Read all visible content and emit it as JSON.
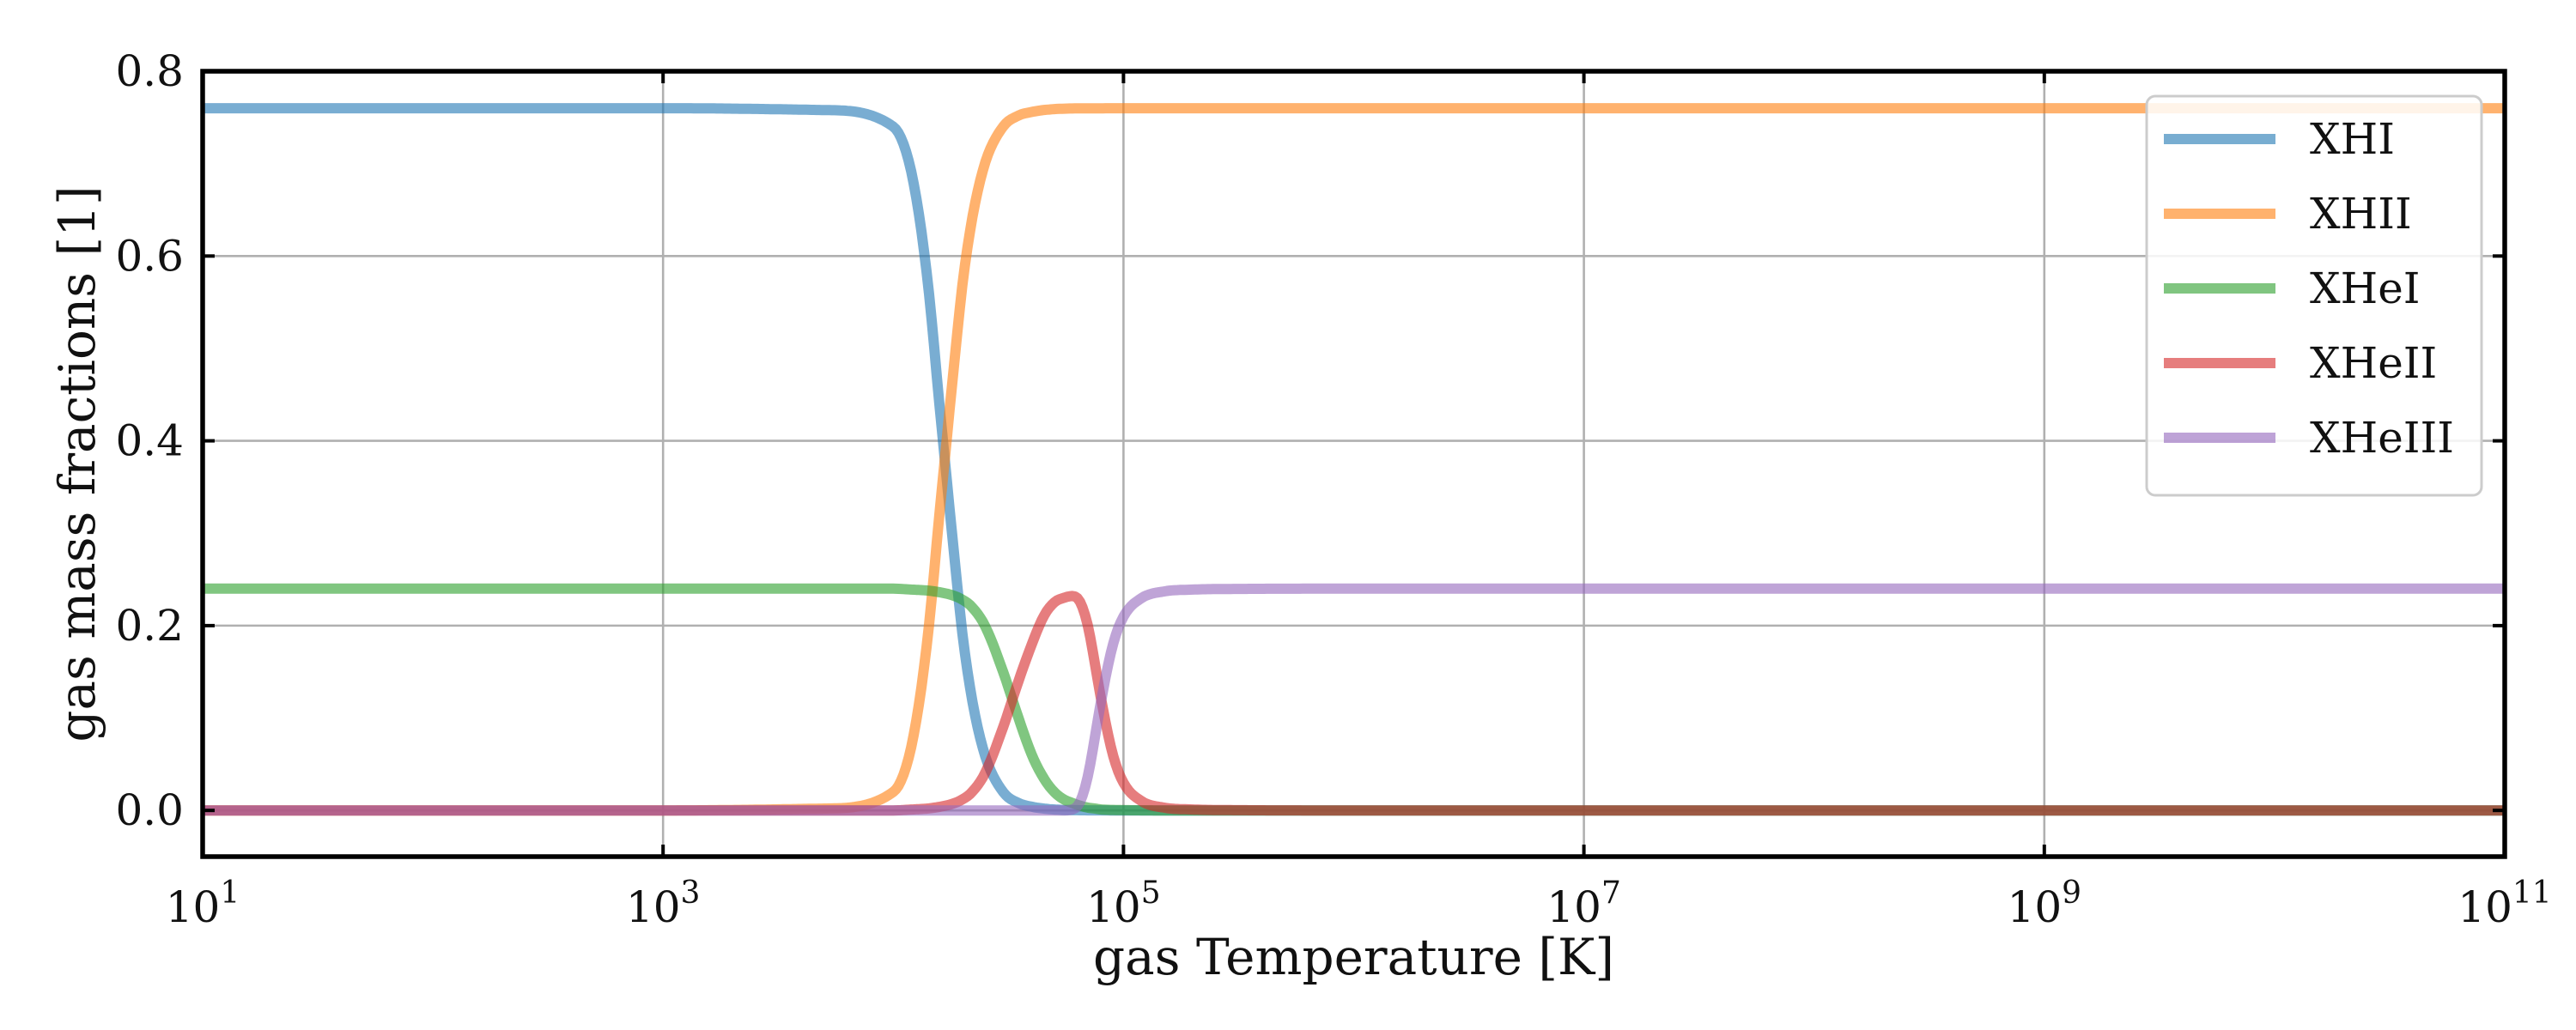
{
  "chart_data": {
    "type": "line",
    "xlabel": "gas Temperature [K]",
    "ylabel": "gas mass fractions [1]",
    "x_scale": "log",
    "xlim": [
      10,
      100000000000
    ],
    "ylim": [
      -0.05,
      0.8
    ],
    "x_ticks": [
      {
        "value": 10,
        "base": "10",
        "exp": "1"
      },
      {
        "value": 1000,
        "base": "10",
        "exp": "3"
      },
      {
        "value": 100000,
        "base": "10",
        "exp": "5"
      },
      {
        "value": 10000000,
        "base": "10",
        "exp": "7"
      },
      {
        "value": 1000000000,
        "base": "10",
        "exp": "9"
      },
      {
        "value": 100000000000,
        "base": "10",
        "exp": "11"
      }
    ],
    "y_ticks": [
      {
        "value": 0.0,
        "label": "0.0"
      },
      {
        "value": 0.2,
        "label": "0.2"
      },
      {
        "value": 0.4,
        "label": "0.4"
      },
      {
        "value": 0.6,
        "label": "0.6"
      },
      {
        "value": 0.8,
        "label": "0.8"
      }
    ],
    "grid": true,
    "legend_position": "top-right",
    "x": [
      10,
      100,
      1000,
      5000,
      10000,
      12000,
      14000,
      16000,
      18000,
      20000,
      22000,
      25000,
      30000,
      35000,
      40000,
      45000,
      50000,
      55000,
      60000,
      65000,
      70000,
      75000,
      80000,
      90000,
      100000,
      120000,
      150000,
      200000,
      300000,
      1000000,
      10000000,
      1000000000,
      100000000000
    ],
    "series": [
      {
        "name": "XHI",
        "color": "#1f77b4",
        "values": [
          0.76,
          0.76,
          0.76,
          0.758,
          0.74,
          0.69,
          0.58,
          0.43,
          0.3,
          0.19,
          0.12,
          0.06,
          0.02,
          0.008,
          0.004,
          0.002,
          0.001,
          0.0005,
          0.0003,
          0.0002,
          0.0001,
          0.0001,
          0.0001,
          0.0,
          0.0,
          0.0,
          0.0,
          0.0,
          0.0,
          0.0,
          0.0,
          0.0,
          0.0
        ]
      },
      {
        "name": "XHII",
        "color": "#ff7f0e",
        "values": [
          0.0,
          0.0,
          0.0,
          0.002,
          0.02,
          0.07,
          0.18,
          0.33,
          0.46,
          0.57,
          0.64,
          0.7,
          0.74,
          0.752,
          0.756,
          0.758,
          0.759,
          0.7595,
          0.7597,
          0.7598,
          0.7599,
          0.7599,
          0.7599,
          0.76,
          0.76,
          0.76,
          0.76,
          0.76,
          0.76,
          0.76,
          0.76,
          0.76,
          0.76
        ]
      },
      {
        "name": "XHeI",
        "color": "#2ca02c",
        "values": [
          0.24,
          0.24,
          0.24,
          0.24,
          0.24,
          0.239,
          0.238,
          0.236,
          0.233,
          0.228,
          0.22,
          0.2,
          0.15,
          0.1,
          0.06,
          0.035,
          0.02,
          0.012,
          0.008,
          0.005,
          0.003,
          0.002,
          0.001,
          0.0005,
          0.0003,
          0.0001,
          0.0,
          0.0,
          0.0,
          0.0,
          0.0,
          0.0,
          0.0
        ]
      },
      {
        "name": "XHeII",
        "color": "#d62728",
        "values": [
          0.0,
          0.0,
          0.0,
          0.0,
          0.0,
          0.001,
          0.002,
          0.004,
          0.007,
          0.012,
          0.02,
          0.04,
          0.09,
          0.14,
          0.18,
          0.21,
          0.225,
          0.23,
          0.232,
          0.225,
          0.2,
          0.16,
          0.12,
          0.06,
          0.03,
          0.01,
          0.003,
          0.001,
          0.0003,
          0.0,
          0.0,
          0.0,
          0.0
        ]
      },
      {
        "name": "XHeIII",
        "color": "#9467bd",
        "values": [
          0.0,
          0.0,
          0.0,
          0.0,
          0.0,
          0.0,
          0.0,
          0.0,
          0.0,
          0.0,
          0.0,
          0.0,
          0.0,
          0.0,
          0.0,
          0.0,
          0.0,
          0.0,
          0.001,
          0.01,
          0.037,
          0.078,
          0.119,
          0.1795,
          0.2097,
          0.2299,
          0.237,
          0.239,
          0.2397,
          0.24,
          0.24,
          0.24,
          0.24
        ]
      }
    ]
  }
}
